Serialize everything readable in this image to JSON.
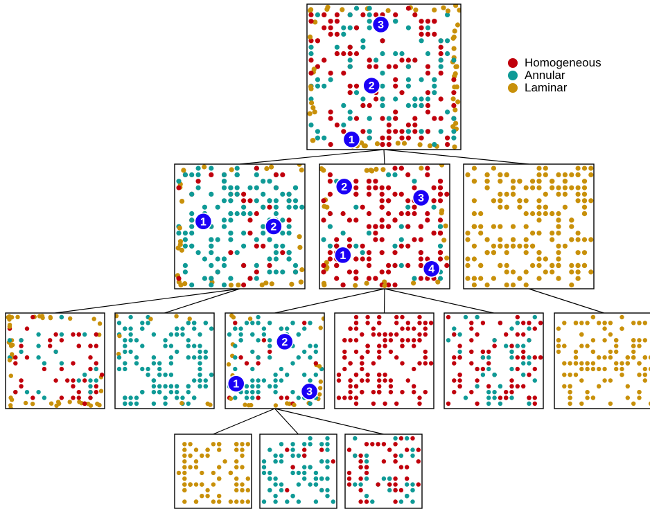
{
  "colors": {
    "homogeneous": "#c0000c",
    "annular": "#0f9a96",
    "laminar": "#c8900a",
    "marker": "#1a00f5",
    "marker_text": "#ffffff",
    "tree_line": "#000000",
    "panel_border": "#000000"
  },
  "legend": {
    "items": [
      {
        "label": "Homogeneous",
        "color_key": "homogeneous"
      },
      {
        "label": "Annular",
        "color_key": "annular"
      },
      {
        "label": "Laminar",
        "color_key": "laminar"
      }
    ]
  },
  "tree": {
    "root": {
      "id": "root",
      "markers": [
        "1",
        "2",
        "3"
      ],
      "composition": {
        "homogeneous": 0.45,
        "annular": 0.33,
        "laminar": 0.22
      },
      "children": [
        {
          "id": "node-1",
          "markers": [
            "1",
            "2"
          ],
          "composition": {
            "homogeneous": 0.15,
            "annular": 0.7,
            "laminar": 0.15
          },
          "children": [
            {
              "id": "node-1-1",
              "markers": [],
              "composition": {
                "homogeneous": 0.35,
                "annular": 0.2,
                "laminar": 0.45
              }
            },
            {
              "id": "node-1-2",
              "markers": [],
              "composition": {
                "homogeneous": 0.0,
                "annular": 0.92,
                "laminar": 0.08
              }
            }
          ]
        },
        {
          "id": "node-2",
          "markers": [
            "1",
            "2",
            "3",
            "4"
          ],
          "composition": {
            "homogeneous": 0.7,
            "annular": 0.18,
            "laminar": 0.12
          },
          "children": [
            {
              "id": "node-2-1",
              "markers": [
                "1",
                "2",
                "3"
              ],
              "composition": {
                "homogeneous": 0.15,
                "annular": 0.65,
                "laminar": 0.2
              },
              "children": [
                {
                  "id": "node-2-1-1",
                  "markers": [],
                  "composition": {
                    "homogeneous": 0.0,
                    "annular": 0.0,
                    "laminar": 1.0
                  }
                },
                {
                  "id": "node-2-1-2",
                  "markers": [],
                  "composition": {
                    "homogeneous": 0.12,
                    "annular": 0.88,
                    "laminar": 0.0
                  }
                },
                {
                  "id": "node-2-1-3",
                  "markers": [],
                  "composition": {
                    "homogeneous": 0.55,
                    "annular": 0.45,
                    "laminar": 0.0
                  }
                }
              ]
            },
            {
              "id": "node-2-2",
              "markers": [],
              "composition": {
                "homogeneous": 1.0,
                "annular": 0.0,
                "laminar": 0.0
              }
            },
            {
              "id": "node-2-3",
              "markers": [],
              "composition": {
                "homogeneous": 0.6,
                "annular": 0.4,
                "laminar": 0.0
              }
            }
          ]
        },
        {
          "id": "node-3",
          "markers": [],
          "composition": {
            "homogeneous": 0.0,
            "annular": 0.0,
            "laminar": 1.0
          },
          "children": [
            {
              "id": "node-3-1",
              "markers": [],
              "composition": {
                "homogeneous": 0.0,
                "annular": 0.0,
                "laminar": 1.0
              }
            }
          ]
        }
      ]
    }
  }
}
